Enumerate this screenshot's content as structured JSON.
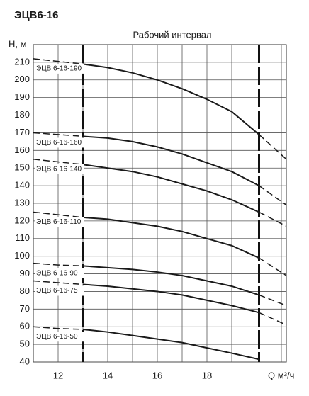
{
  "chart_data": {
    "type": "line",
    "title": "ЭЦВ6-16",
    "subtitle": "Рабочий интервал",
    "y_label": "H, м",
    "x_label": "Q м³/ч",
    "x": [
      11,
      12,
      13,
      14,
      15,
      16,
      17,
      18,
      19,
      20.1,
      21.2
    ],
    "working_range": [
      13,
      20.1
    ],
    "series": [
      {
        "name": "ЭЦВ 6-16-190",
        "color": "#1a1a1a",
        "values": [
          212,
          210.5,
          209,
          207,
          204,
          200,
          195,
          189,
          182,
          169,
          155
        ]
      },
      {
        "name": "ЭЦВ 6-16-160",
        "color": "#1a1a1a",
        "values": [
          170,
          169,
          168,
          167,
          165,
          162,
          158,
          153,
          148,
          140,
          129
        ]
      },
      {
        "name": "ЭЦВ 6-16-140",
        "color": "#1a1a1a",
        "values": [
          155,
          153.5,
          152,
          150,
          148,
          145,
          141,
          137,
          132,
          125,
          117
        ]
      },
      {
        "name": "ЭЦВ 6-16-110",
        "color": "#1a1a1a",
        "values": [
          125,
          123.5,
          122,
          121,
          119,
          117,
          114,
          110,
          106,
          99,
          89
        ]
      },
      {
        "name": "ЭЦВ 6-16-90",
        "color": "#1a1a1a",
        "values": [
          96,
          95,
          94.5,
          93.5,
          92.5,
          91,
          89,
          86,
          83,
          78,
          72
        ]
      },
      {
        "name": "ЭЦВ 6-16-75",
        "color": "#1a1a1a",
        "values": [
          86,
          85,
          84,
          83,
          81.5,
          80,
          78,
          75,
          72,
          68,
          61
        ]
      },
      {
        "name": "ЭЦВ 6-16-50",
        "color": "#1a1a1a",
        "values": [
          60,
          59,
          58.5,
          57,
          55,
          53,
          51,
          48,
          45,
          41.5,
          null
        ]
      }
    ],
    "xlim": [
      11,
      21.2
    ],
    "xticks": [
      12,
      14,
      16,
      18
    ],
    "xgrid": [
      13,
      15,
      17,
      19,
      21
    ],
    "ylim": [
      40,
      220
    ],
    "yticks": [
      40,
      50,
      60,
      70,
      80,
      90,
      100,
      110,
      120,
      130,
      140,
      150,
      160,
      170,
      180,
      190,
      200,
      210
    ],
    "grid": true
  }
}
